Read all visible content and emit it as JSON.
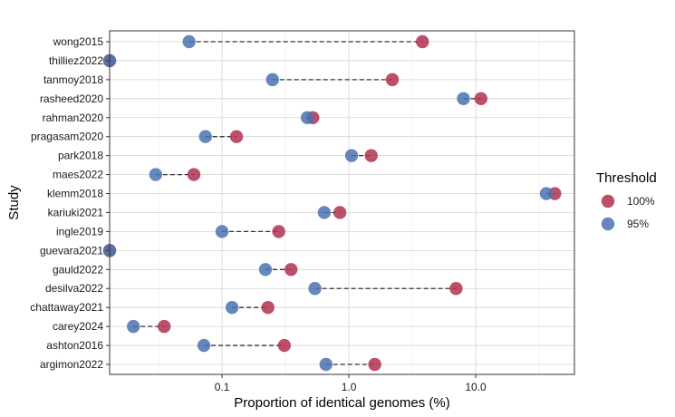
{
  "chart_data": {
    "type": "scatter",
    "xlabel": "Proportion of identical genomes (%)",
    "ylabel": "Study",
    "x_scale": "log10",
    "xlim": [
      0.013,
      60
    ],
    "x_ticks": [
      0.1,
      1.0,
      10.0
    ],
    "x_tick_labels": [
      "0.1",
      "1.0",
      "10.0"
    ],
    "grid": true,
    "legend": {
      "title": "Threshold",
      "position": "right",
      "entries": [
        {
          "label": "100%",
          "color": "#b0304f"
        },
        {
          "label": "95%",
          "color": "#4a73b0"
        }
      ]
    },
    "categories": [
      "argimon2022",
      "ashton2016",
      "carey2024",
      "chattaway2021",
      "desilva2022",
      "gauld2022",
      "guevara2021",
      "ingle2019",
      "kariuki2021",
      "klemm2018",
      "maes2022",
      "park2018",
      "pragasam2020",
      "rahman2020",
      "rasheed2020",
      "tanmoy2018",
      "thilliez2022",
      "wong2015"
    ],
    "series": [
      {
        "name": "100%",
        "values": [
          1.6,
          0.31,
          0.035,
          0.23,
          7.0,
          0.35,
          0.013,
          0.28,
          0.85,
          42.0,
          0.06,
          1.5,
          0.13,
          0.52,
          11.0,
          2.2,
          0.013,
          3.8
        ]
      },
      {
        "name": "95%",
        "values": [
          0.66,
          0.072,
          0.02,
          0.12,
          0.54,
          0.22,
          0.013,
          0.1,
          0.64,
          36.0,
          0.03,
          1.05,
          0.074,
          0.47,
          8.0,
          0.25,
          0.013,
          0.055
        ]
      }
    ]
  }
}
